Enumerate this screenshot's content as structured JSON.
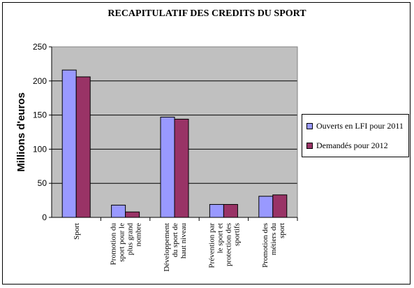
{
  "chart_data": {
    "type": "bar",
    "title": "RECAPITULATIF DES CREDITS DU SPORT",
    "xlabel": "",
    "ylabel": "Millions d'euros",
    "ylim": [
      0,
      250
    ],
    "yticks": [
      0,
      50,
      100,
      150,
      200,
      250
    ],
    "grid": true,
    "legend_position": "right",
    "categories": [
      [
        "Sport"
      ],
      [
        "Promotion du",
        "sport pour le",
        "plus grand",
        "nombre"
      ],
      [
        "Développement",
        "du sport de",
        "haut niveau"
      ],
      [
        "Prévention par",
        "le sport et",
        "protection des",
        "sportifs"
      ],
      [
        "Promotion des",
        "métiers du",
        "sport"
      ]
    ],
    "series": [
      {
        "name": "Ouverts en LFI pour 2011",
        "values": [
          216,
          18,
          147,
          19,
          31
        ],
        "color": "#9999ff"
      },
      {
        "name": "Demandés pour 2012",
        "values": [
          206,
          8,
          144,
          19,
          33
        ],
        "color": "#993366"
      }
    ],
    "plot_background": "#c0c0c0"
  }
}
